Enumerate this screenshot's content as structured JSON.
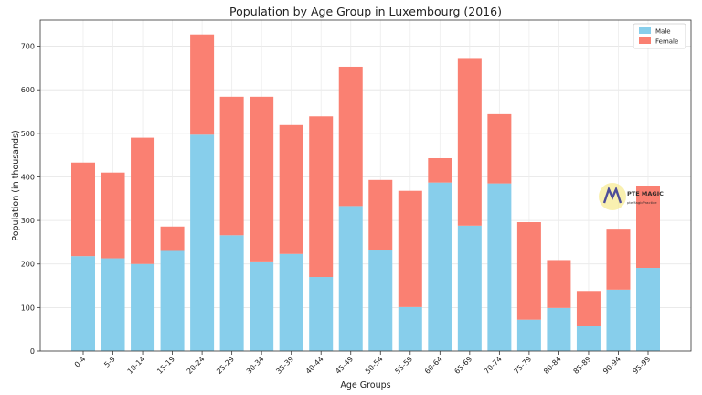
{
  "chart_data": {
    "type": "bar",
    "stacked": true,
    "title": "Population by Age Group in Luxembourg (2016)",
    "xlabel": "Age Groups",
    "ylabel": "Population (in thousands)",
    "ylim": [
      0,
      760
    ],
    "yticks": [
      0,
      100,
      200,
      300,
      400,
      500,
      600,
      700
    ],
    "grid": true,
    "legend_position": "top-right",
    "categories": [
      "0-4",
      "5-9",
      "10-14",
      "15-19",
      "20-24",
      "25-29",
      "30-34",
      "35-39",
      "40-44",
      "45-49",
      "50-54",
      "55-59",
      "60-64",
      "65-69",
      "70-74",
      "75-79",
      "80-84",
      "85-89",
      "90-94",
      "95-99"
    ],
    "series": [
      {
        "name": "Male",
        "color": "#87CEEB",
        "values": [
          218,
          213,
          200,
          232,
          497,
          266,
          206,
          223,
          170,
          333,
          233,
          101,
          387,
          288,
          385,
          72,
          99,
          57,
          141,
          191
        ]
      },
      {
        "name": "Female",
        "color": "#FA8072",
        "values": [
          215,
          197,
          290,
          54,
          230,
          318,
          378,
          296,
          369,
          320,
          160,
          267,
          56,
          385,
          159,
          224,
          110,
          81,
          140,
          189
        ]
      }
    ]
  },
  "watermark": {
    "brand": "PTE MAGIC",
    "tagline": "pteMagicPractice"
  }
}
